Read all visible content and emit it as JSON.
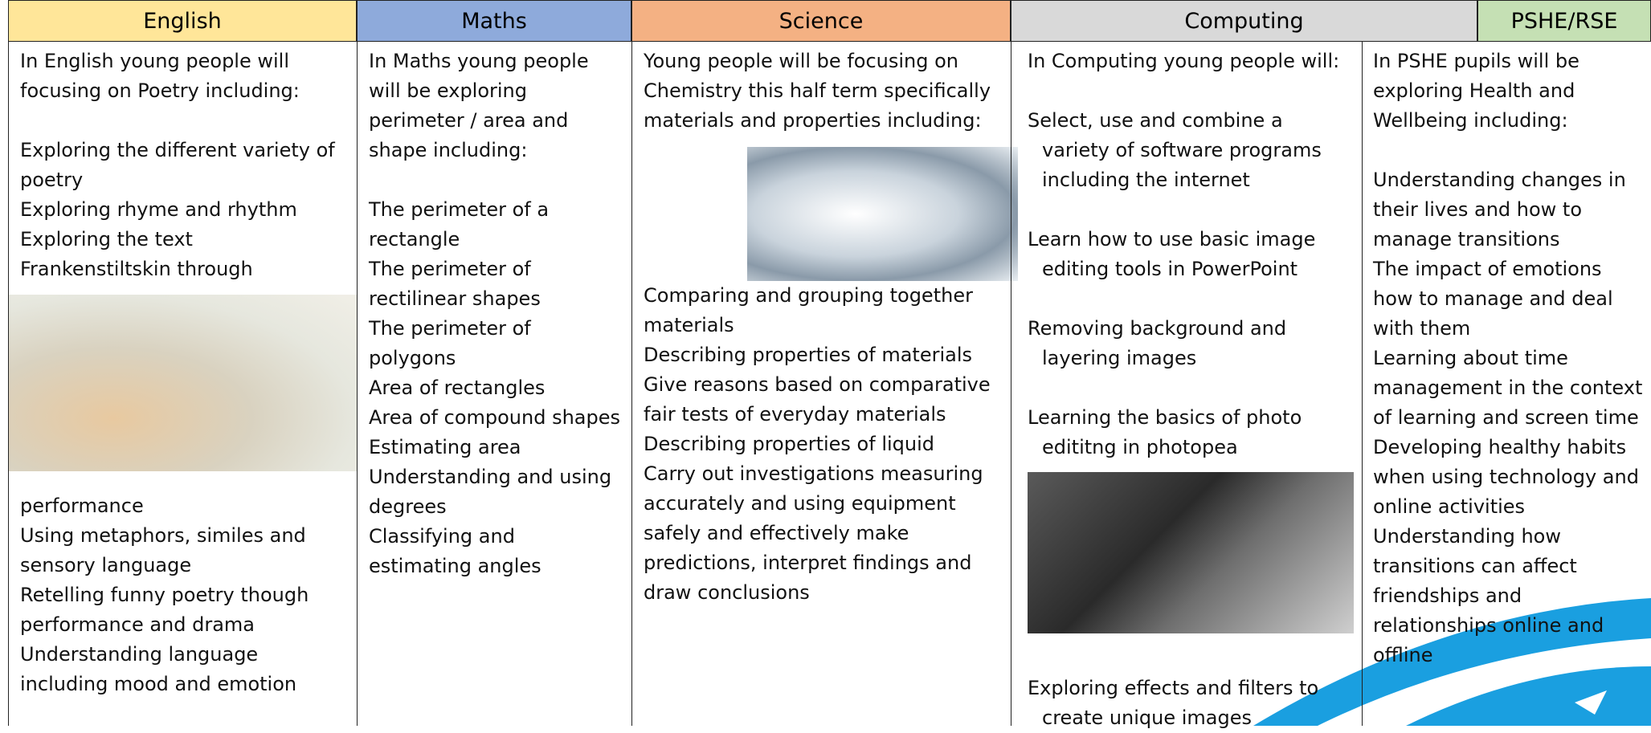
{
  "columns": [
    {
      "header": "English",
      "intro": "In English young people will focusing on Poetry including:",
      "items": [
        "Exploring the different variety of poetry",
        "Exploring rhyme and rhythm",
        "Exploring the text",
        "Frankenstiltskin through",
        "performance",
        "Using metaphors, similes and sensory language",
        "Retelling funny poetry though performance and drama",
        "Understanding language including mood and emotion"
      ]
    },
    {
      "header": "Maths",
      "intro": "In Maths young people will be exploring perimeter / area and shape including:",
      "items": [
        "The perimeter of a rectangle",
        "The perimeter of rectilinear shapes",
        "The perimeter of polygons",
        "Area of rectangles",
        "Area of compound shapes",
        "Estimating area",
        "Understanding and using degrees",
        "Classifying and estimating angles"
      ]
    },
    {
      "header": "Science",
      "intro": "Young people will be focusing on Chemistry this half term specifically materials and properties including:",
      "items": [
        "Comparing and grouping together materials",
        "Describing properties of materials",
        "Give reasons based on comparative fair tests of everyday materials",
        "Describing properties of liquid",
        "Carry out investigations measuring accurately and using equipment safely and effectively make predictions, interpret findings and draw conclusions"
      ]
    },
    {
      "header": "Computing",
      "intro": "In Computing young people will:",
      "items": [
        "Select, use and combine a variety of software programs including the internet",
        "Learn how to use basic image editing tools in PowerPoint",
        "Removing background and layering images",
        "Learning the basics of photo edititng in photopea",
        "Exploring effects and filters to create unique images"
      ]
    },
    {
      "header": "PSHE/RSE",
      "intro": "In PSHE pupils will be exploring Health and Wellbeing including:",
      "items": [
        "Understanding changes in their lives and how to manage transitions",
        "The impact of emotions how to manage and deal with them",
        "Learning about time management in the context of learning and screen time",
        "Developing healthy habits when using technology and online activities",
        "Understanding how transitions can affect friendships and relationships online and offline"
      ]
    }
  ]
}
